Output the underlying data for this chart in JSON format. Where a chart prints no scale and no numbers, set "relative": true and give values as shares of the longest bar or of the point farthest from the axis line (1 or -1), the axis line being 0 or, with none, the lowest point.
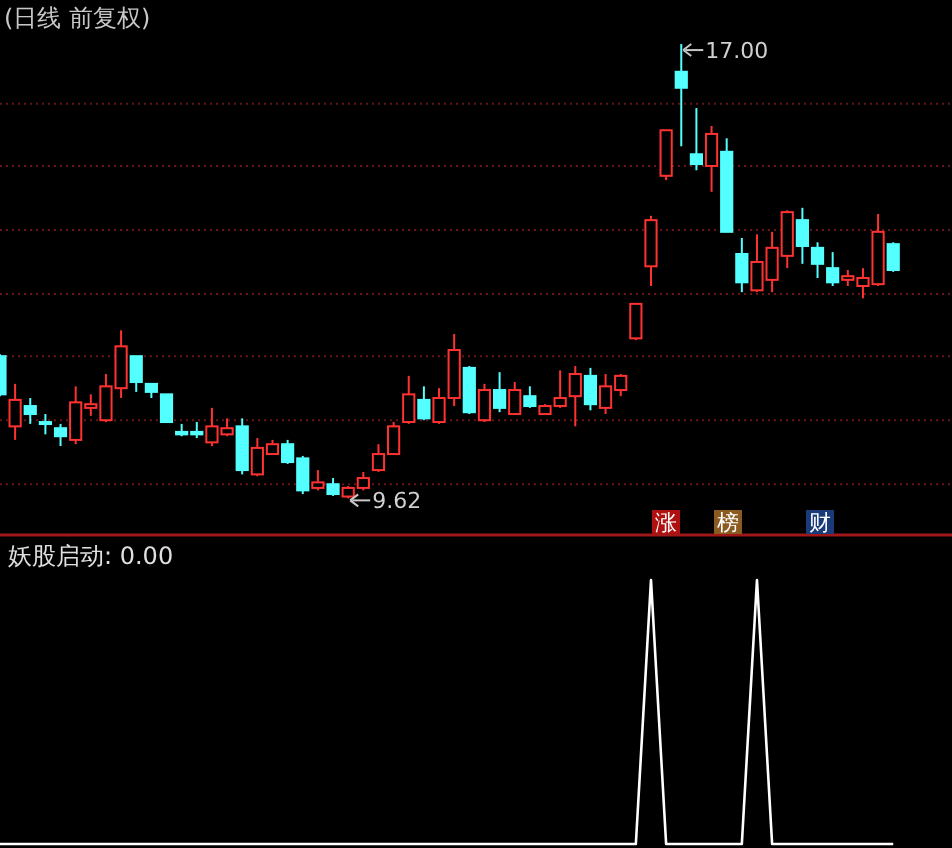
{
  "chart_data": [
    {
      "type": "candlestick",
      "title": "(日线 前复权)",
      "categories": [
        null,
        null,
        null,
        null,
        null,
        null,
        null,
        null,
        null,
        null,
        null,
        null,
        null,
        null,
        null,
        null,
        null,
        null,
        null,
        null,
        null,
        null,
        null,
        null,
        null,
        null,
        null,
        null,
        null,
        null,
        null,
        null,
        null,
        null,
        null,
        null,
        null,
        null,
        null,
        null,
        null,
        null,
        null,
        null,
        null,
        null,
        null,
        null,
        null,
        null,
        null,
        null,
        null,
        null,
        null,
        null,
        null,
        null,
        null,
        null
      ],
      "ohlc": [
        [
          11.93,
          11.96,
          11.28,
          11.31
        ],
        [
          10.79,
          11.48,
          10.57,
          11.22
        ],
        [
          11.12,
          11.25,
          10.83,
          10.99
        ],
        [
          10.86,
          10.99,
          10.66,
          10.83
        ],
        [
          10.76,
          10.83,
          10.47,
          10.63
        ],
        [
          10.57,
          11.44,
          10.5,
          11.18
        ],
        [
          11.09,
          11.31,
          10.96,
          11.15
        ],
        [
          10.89,
          11.64,
          10.86,
          11.44
        ],
        [
          11.41,
          12.35,
          11.25,
          12.09
        ],
        [
          11.93,
          11.93,
          11.35,
          11.51
        ],
        [
          11.48,
          11.48,
          11.25,
          11.35
        ],
        [
          11.31,
          11.31,
          10.86,
          10.86
        ],
        [
          10.7,
          10.83,
          10.63,
          10.66
        ],
        [
          10.7,
          10.86,
          10.6,
          10.66
        ],
        [
          10.53,
          11.09,
          10.47,
          10.79
        ],
        [
          10.66,
          10.92,
          10.63,
          10.76
        ],
        [
          10.79,
          10.92,
          10.01,
          10.08
        ],
        [
          10.01,
          10.6,
          9.98,
          10.44
        ],
        [
          10.34,
          10.57,
          10.34,
          10.5
        ],
        [
          10.5,
          10.57,
          10.18,
          10.21
        ],
        [
          10.27,
          10.31,
          9.69,
          9.75
        ],
        [
          9.79,
          10.08,
          9.75,
          9.88
        ],
        [
          9.85,
          9.95,
          9.66,
          9.69
        ],
        [
          9.65,
          9.82,
          9.62,
          9.79
        ],
        [
          9.79,
          10.05,
          9.75,
          9.95
        ],
        [
          10.08,
          10.5,
          10.05,
          10.34
        ],
        [
          10.34,
          10.86,
          10.34,
          10.79
        ],
        [
          10.86,
          11.61,
          10.83,
          11.31
        ],
        [
          11.22,
          11.44,
          10.89,
          10.92
        ],
        [
          10.86,
          11.41,
          10.83,
          11.25
        ],
        [
          11.25,
          12.29,
          11.12,
          12.03
        ],
        [
          11.74,
          11.77,
          10.99,
          11.02
        ],
        [
          10.89,
          11.48,
          10.86,
          11.38
        ],
        [
          11.38,
          11.67,
          11.02,
          11.09
        ],
        [
          10.99,
          11.51,
          10.99,
          11.38
        ],
        [
          11.28,
          11.44,
          11.09,
          11.12
        ],
        [
          10.99,
          11.15,
          10.99,
          11.12
        ],
        [
          11.12,
          11.7,
          11.09,
          11.25
        ],
        [
          11.28,
          11.77,
          10.79,
          11.64
        ],
        [
          11.61,
          11.74,
          11.05,
          11.15
        ],
        [
          11.09,
          11.64,
          10.99,
          11.44
        ],
        [
          11.38,
          11.64,
          11.28,
          11.61
        ],
        [
          12.22,
          12.78,
          12.19,
          12.78
        ],
        [
          13.39,
          14.21,
          13.07,
          14.14
        ],
        [
          14.86,
          15.6,
          14.79,
          15.6
        ],
        [
          16.55,
          17.0,
          15.34,
          16.29
        ],
        [
          15.21,
          15.96,
          14.95,
          15.05
        ],
        [
          15.02,
          15.67,
          14.6,
          15.54
        ],
        [
          15.25,
          15.47,
          13.95,
          13.95
        ],
        [
          13.59,
          13.85,
          12.97,
          13.13
        ],
        [
          13.0,
          13.91,
          12.97,
          13.46
        ],
        [
          13.17,
          13.95,
          12.97,
          13.69
        ],
        [
          13.56,
          14.3,
          13.36,
          14.27
        ],
        [
          14.14,
          14.34,
          13.43,
          13.72
        ],
        [
          13.69,
          13.78,
          13.2,
          13.43
        ],
        [
          13.36,
          13.62,
          13.07,
          13.13
        ],
        [
          13.17,
          13.33,
          13.07,
          13.23
        ],
        [
          13.07,
          13.36,
          12.87,
          13.2
        ],
        [
          13.1,
          14.24,
          13.07,
          13.95
        ],
        [
          13.75,
          13.78,
          13.3,
          13.33
        ]
      ],
      "colors": [
        "#54ffff",
        "#ff3232",
        "#54ffff",
        "#54ffff",
        "#54ffff",
        "#ff3232",
        "#ff3232",
        "#ff3232",
        "#ff3232",
        "#54ffff",
        "#54ffff",
        "#54ffff",
        "#54ffff",
        "#54ffff",
        "#ff3232",
        "#ff3232",
        "#54ffff",
        "#ff3232",
        "#ff3232",
        "#54ffff",
        "#54ffff",
        "#ff3232",
        "#54ffff",
        "#ff3232",
        "#ff3232",
        "#ff3232",
        "#ff3232",
        "#ff3232",
        "#54ffff",
        "#ff3232",
        "#ff3232",
        "#54ffff",
        "#ff3232",
        "#54ffff",
        "#ff3232",
        "#54ffff",
        "#ff3232",
        "#ff3232",
        "#ff3232",
        "#54ffff",
        "#ff3232",
        "#ff3232",
        "#ff3232",
        "#ff3232",
        "#ff3232",
        "#54ffff",
        "#54ffff",
        "#ff3232",
        "#54ffff",
        "#54ffff",
        "#ff3232",
        "#ff3232",
        "#ff3232",
        "#54ffff",
        "#54ffff",
        "#54ffff",
        "#ff3232",
        "#ff3232",
        "#ff3232",
        "#54ffff"
      ],
      "yticks": [
        {
          "value": 9.85,
          "label": null
        },
        {
          "value": 10.89,
          "label": null
        },
        {
          "value": 11.93,
          "label": null
        },
        {
          "value": 12.94,
          "label": null
        },
        {
          "value": 13.98,
          "label": null
        },
        {
          "value": 15.02,
          "label": null
        },
        {
          "value": 16.03,
          "label": null
        }
      ],
      "grid": "y",
      "annotations": [
        "17.00",
        "9.62",
        "涨",
        "榜",
        "财"
      ]
    },
    {
      "type": "line",
      "title": "妖股启动: 0.00",
      "relative": true,
      "categories": [
        null,
        null,
        null,
        null,
        null,
        null,
        null,
        null,
        null,
        null,
        null,
        null,
        null,
        null,
        null,
        null,
        null,
        null,
        null,
        null,
        null,
        null,
        null,
        null,
        null,
        null,
        null,
        null,
        null,
        null,
        null,
        null,
        null,
        null,
        null,
        null,
        null,
        null,
        null,
        null,
        null,
        null,
        null,
        null,
        null,
        null,
        null,
        null,
        null,
        null,
        null,
        null,
        null,
        null,
        null,
        null,
        null,
        null,
        null,
        null
      ],
      "series": [
        {
          "color": "#ffffff",
          "values": [
            0,
            0,
            0,
            0,
            0,
            0,
            0,
            0,
            0,
            0,
            0,
            0,
            0,
            0,
            0,
            0,
            0,
            0,
            0,
            0,
            0,
            0,
            0,
            0,
            0,
            0,
            0,
            0,
            0,
            0,
            0,
            0,
            0,
            0,
            0,
            0,
            0,
            0,
            0,
            0,
            0,
            0,
            0,
            1,
            0,
            0,
            0,
            0,
            0,
            0,
            1,
            0,
            0,
            0,
            0,
            0,
            0,
            0,
            0,
            0
          ]
        }
      ]
    }
  ]
}
